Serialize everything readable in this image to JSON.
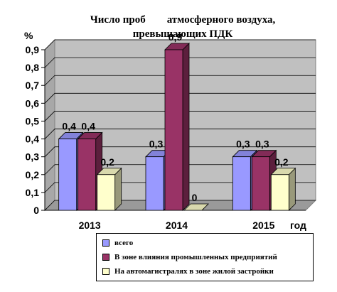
{
  "title_line_1": "Число проб        атмосферного воздуха,",
  "title_line_2": "превышающих ПДК",
  "chart_data": {
    "type": "bar",
    "title": "Число проб атмосферного воздуха, превышающих ПДК",
    "xlabel": "год",
    "ylabel": "%",
    "ylim": [
      0,
      0.9
    ],
    "yticks": [
      "0",
      "0,1",
      "0,2",
      "0,3",
      "0,4",
      "0,5",
      "0,6",
      "0,7",
      "0,8",
      "0,9"
    ],
    "categories": [
      "2013",
      "2014",
      "2015"
    ],
    "series": [
      {
        "name": "всего",
        "values": [
          0.4,
          0.3,
          0.3
        ],
        "labels": [
          "0,4",
          "0,3",
          "0,3"
        ],
        "color": "#9999ff"
      },
      {
        "name": "В зоне влияния промышленных предприятий",
        "values": [
          0.4,
          0.9,
          0.3
        ],
        "labels": [
          "0,4",
          "0,9",
          "0,3"
        ],
        "color": "#993366"
      },
      {
        "name": "На автомагистралях в зоне жилой застройки",
        "values": [
          0.2,
          0,
          0.2
        ],
        "labels": [
          "0,2",
          "0",
          "0,2"
        ],
        "color": "#ffffcc"
      }
    ],
    "grid": true,
    "legend": "bottom"
  }
}
